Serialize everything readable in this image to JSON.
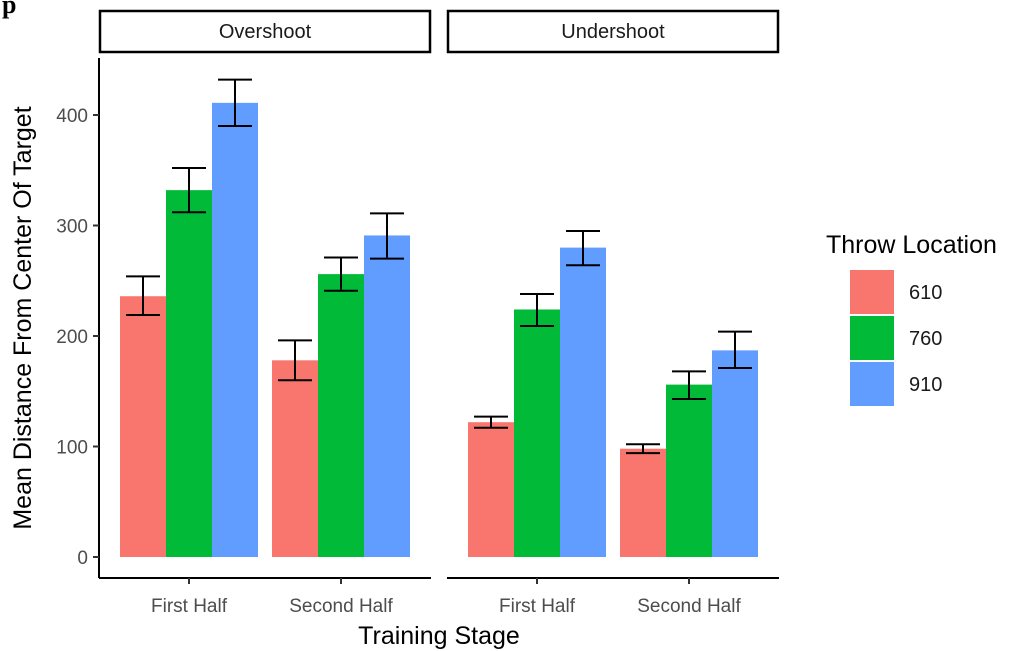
{
  "top_text": "p",
  "chart_data": {
    "type": "bar",
    "xlabel": "Training Stage",
    "ylabel": "Mean Distance From Center Of Target",
    "ylim": [
      0,
      450
    ],
    "yticks": [
      0,
      100,
      200,
      300,
      400
    ],
    "categories": [
      "First Half",
      "Second Half"
    ],
    "legend": {
      "title": "Throw Location",
      "position": "right"
    },
    "grid": false,
    "series": [
      {
        "name": "610",
        "color": "#F8766D"
      },
      {
        "name": "760",
        "color": "#00BA38"
      },
      {
        "name": "910",
        "color": "#619CFF"
      }
    ],
    "panels": [
      {
        "title": "Overshoot",
        "values": [
          [
            236,
            332,
            411
          ],
          [
            178,
            256,
            291
          ]
        ],
        "error_low": [
          [
            219,
            312,
            390
          ],
          [
            160,
            241,
            270
          ]
        ],
        "error_high": [
          [
            254,
            352,
            432
          ],
          [
            196,
            271,
            311
          ]
        ]
      },
      {
        "title": "Undershoot",
        "values": [
          [
            122,
            224,
            280
          ],
          [
            98,
            156,
            187
          ]
        ],
        "error_low": [
          [
            117,
            209,
            264
          ],
          [
            94,
            143,
            171
          ]
        ],
        "error_high": [
          [
            127,
            238,
            295
          ],
          [
            102,
            168,
            204
          ]
        ]
      }
    ]
  }
}
